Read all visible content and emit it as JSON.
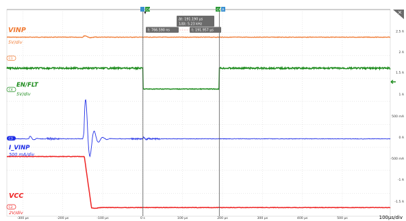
{
  "chart_data": {
    "type": "line",
    "timebase": "100µs/div",
    "x_ticks": [
      "-300 µs",
      "-200 µs",
      "-100 µs",
      "0 s",
      "100 µs",
      "200 µs",
      "300 µs",
      "400 µs",
      "500 µs"
    ],
    "xlim_us": [
      -340,
      620
    ],
    "right_scale_ticks": [
      "2.5 A",
      "2 A",
      "1.5 A",
      "1 A",
      "500 mA",
      "0 A",
      "-500 mA",
      "-1 A",
      "-1.5 A"
    ],
    "series": [
      {
        "name": "VINP",
        "scale": "5V/div",
        "channel": "C1",
        "color": "#f07a32"
      },
      {
        "name": "EN/FLT",
        "scale": "5V/div",
        "channel": "C4",
        "color": "#1e8c1e"
      },
      {
        "name": "I_VINP",
        "scale": "500 mA/div",
        "channel": "C3",
        "color": "#1f2ee6"
      },
      {
        "name": "VCC",
        "scale": "2V/div",
        "channel": "C2",
        "color": "#ee2222"
      }
    ],
    "cursors": {
      "delta_t": "Δt: 191.190 µs",
      "inv_delta_t": "1/Δt: 5.23 kHz",
      "t1": "t: 766.590 ns",
      "t2": "t: 191.957 µs",
      "t1_us": 0.77,
      "t2_us": 191.96
    }
  },
  "accent": {
    "grid": "#c9c9c9",
    "cursor": "#555555"
  }
}
